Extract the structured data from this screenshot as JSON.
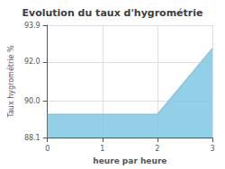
{
  "chart_data": {
    "type": "area",
    "title": "Evolution du taux d'hygrométrie",
    "xlabel": "heure par heure",
    "ylabel": "Taux hygrométrie %",
    "x": [
      0,
      1,
      2,
      3
    ],
    "values": [
      89.3,
      89.3,
      89.3,
      92.7
    ],
    "color": "#7ec8e3",
    "xlim": [
      0,
      3
    ],
    "ylim": [
      88.1,
      93.9
    ],
    "xticks": [
      0,
      1,
      2,
      3
    ],
    "yticks": [
      88.1,
      {
        "value": 90.0,
        "label": "90.0"
      },
      {
        "value": 92.0,
        "label": "92.0"
      },
      93.9
    ],
    "grid": true
  }
}
